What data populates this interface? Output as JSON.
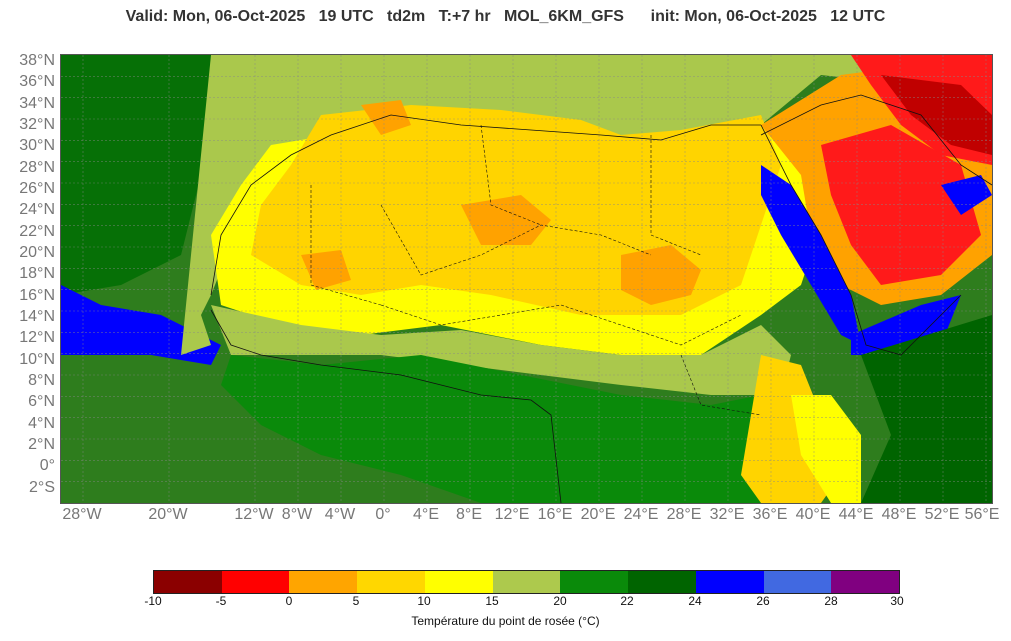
{
  "title": {
    "valid": "Valid: Mon, 06-Oct-2025   19 UTC   td2m   T:+7 hr   MOL_6KM_GFS      init: Mon, 06-Oct-2025   12 UTC"
  },
  "axes": {
    "lat_labels": [
      "38°N",
      "36°N",
      "34°N",
      "32°N",
      "30°N",
      "28°N",
      "26°N",
      "24°N",
      "22°N",
      "20°N",
      "18°N",
      "16°N",
      "14°N",
      "12°N",
      "10°N",
      "8°N",
      "6°N",
      "4°N",
      "2°N",
      "0°",
      "2°S"
    ],
    "lon_labels": [
      "28°W",
      "20°W",
      "12°W",
      "8°W",
      "4°W",
      "0°",
      "4°E",
      "8°E",
      "12°E",
      "16°E",
      "20°E",
      "24°E",
      "28°E",
      "32°E",
      "36°E",
      "40°E",
      "44°E",
      "48°E",
      "52°E",
      "56°E"
    ]
  },
  "legend": {
    "title": "Température du point de rosée (°C)",
    "ticks": [
      "-10",
      "-5",
      "0",
      "5",
      "10",
      "15",
      "20",
      "22",
      "24",
      "26",
      "28",
      "30"
    ],
    "colors": [
      "#8b0000",
      "#ff0000",
      "#ffa500",
      "#ffd700",
      "#ffff00",
      "#adc94d",
      "#0a8a0a",
      "#006400",
      "#0000ff",
      "#4169e1",
      "#800080"
    ]
  },
  "map": {
    "sea_color": "#2e7d1d",
    "colors": {
      "dark_red": "#c00000",
      "red": "#ff1a1a",
      "orange": "#ffa200",
      "gold": "#ffd400",
      "yellow": "#ffff00",
      "olive": "#aac84c",
      "green": "#0a8a0a",
      "dark_green": "#006400",
      "blue": "#0000ff"
    }
  }
}
